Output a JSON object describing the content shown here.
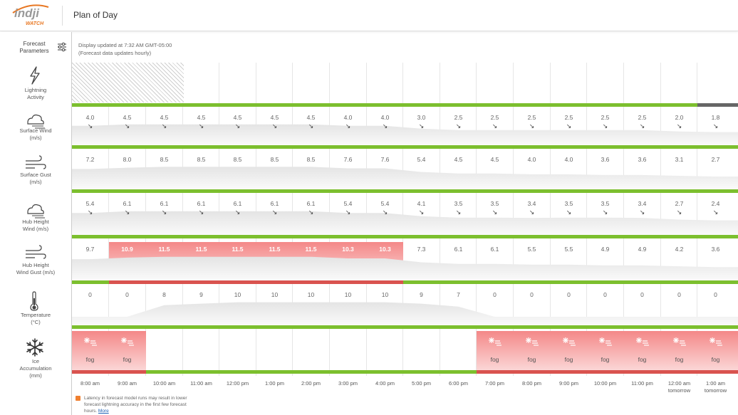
{
  "header": {
    "logo_text": "indji",
    "logo_sub": "WATCH",
    "title": "Plan of Day"
  },
  "forecast_params_label": "Forecast\nParameters",
  "update": {
    "line1": "Display updated at 7:32 AM GMT-05:00",
    "line2": "(Forecast data updates hourly)"
  },
  "colors": {
    "ok": "#7cbf2e",
    "warn": "#d9534f",
    "dark": "#666666",
    "highlight": "#f48888"
  },
  "params": [
    {
      "label": "Lightning\nActivity",
      "icon": "lightning-icon"
    },
    {
      "label": "Surface Wind\n(m/s)",
      "icon": "wind-icon"
    },
    {
      "label": "Surface Gust\n(m/s)",
      "icon": "gust-icon"
    },
    {
      "label": "Hub Height\nWind (m/s)",
      "icon": "wind-icon"
    },
    {
      "label": "Hub Height\nWind Gust (m/s)",
      "icon": "gust-icon"
    },
    {
      "label": "Temperature\n(°C)",
      "icon": "thermometer-icon"
    },
    {
      "label": "Ice\nAccumulation\n(mm)",
      "icon": "snowflake-icon"
    }
  ],
  "times": [
    "8:00 am",
    "9:00 am",
    "10:00 am",
    "11:00 am",
    "12:00 pm",
    "1:00 pm",
    "2:00 pm",
    "3:00 pm",
    "4:00 pm",
    "5:00 pm",
    "6:00 pm",
    "7:00 pm",
    "8:00 pm",
    "9:00 pm",
    "10:00 pm",
    "11:00 pm",
    "12:00 am\ntomorrow",
    "1:00 am\ntomorrow"
  ],
  "lightning": {
    "hatched_hours": 3,
    "status": [
      "g",
      "g",
      "g",
      "g",
      "g",
      "g",
      "g",
      "g",
      "g",
      "g",
      "g",
      "g",
      "g",
      "g",
      "g",
      "g",
      "g",
      "d"
    ]
  },
  "surface_wind": {
    "values": [
      "4.0",
      "4.5",
      "4.5",
      "4.5",
      "4.5",
      "4.5",
      "4.5",
      "4.0",
      "4.0",
      "3.0",
      "2.5",
      "2.5",
      "2.5",
      "2.5",
      "2.5",
      "2.5",
      "2.0",
      "1.8"
    ],
    "arrows": [
      "↘",
      "↘",
      "↘",
      "↘",
      "↘",
      "↘",
      "↘",
      "↘",
      "↘",
      "↘",
      "↘",
      "↘",
      "↘",
      "↘",
      "↘",
      "↘",
      "↘",
      "↘"
    ],
    "status": [
      "g",
      "g",
      "g",
      "g",
      "g",
      "g",
      "g",
      "g",
      "g",
      "g",
      "g",
      "g",
      "g",
      "g",
      "g",
      "g",
      "g",
      "g"
    ]
  },
  "surface_gust": {
    "values": [
      "7.2",
      "8.0",
      "8.5",
      "8.5",
      "8.5",
      "8.5",
      "8.5",
      "7.6",
      "7.6",
      "5.4",
      "4.5",
      "4.5",
      "4.0",
      "4.0",
      "3.6",
      "3.6",
      "3.1",
      "2.7"
    ],
    "status": [
      "g",
      "g",
      "g",
      "g",
      "g",
      "g",
      "g",
      "g",
      "g",
      "g",
      "g",
      "g",
      "g",
      "g",
      "g",
      "g",
      "g",
      "g"
    ]
  },
  "hub_wind": {
    "values": [
      "5.4",
      "6.1",
      "6.1",
      "6.1",
      "6.1",
      "6.1",
      "6.1",
      "5.4",
      "5.4",
      "4.1",
      "3.5",
      "3.5",
      "3.4",
      "3.5",
      "3.5",
      "3.4",
      "2.7",
      "2.4"
    ],
    "arrows": [
      "↘",
      "↘",
      "↘",
      "↘",
      "↘",
      "↘",
      "↘",
      "↘",
      "↘",
      "↘",
      "↘",
      "↘",
      "↘",
      "↘",
      "↘",
      "↘",
      "↘",
      "↘"
    ],
    "status": [
      "g",
      "g",
      "g",
      "g",
      "g",
      "g",
      "g",
      "g",
      "g",
      "g",
      "g",
      "g",
      "g",
      "g",
      "g",
      "g",
      "g",
      "g"
    ]
  },
  "hub_gust": {
    "values": [
      "9.7",
      "10.9",
      "11.5",
      "11.5",
      "11.5",
      "11.5",
      "11.5",
      "10.3",
      "10.3",
      "7.3",
      "6.1",
      "6.1",
      "5.5",
      "5.5",
      "4.9",
      "4.9",
      "4.2",
      "3.6"
    ],
    "highlight": [
      false,
      true,
      true,
      true,
      true,
      true,
      true,
      true,
      true,
      false,
      false,
      false,
      false,
      false,
      false,
      false,
      false,
      false
    ],
    "status": [
      "g",
      "r",
      "r",
      "r",
      "r",
      "r",
      "r",
      "r",
      "r",
      "g",
      "g",
      "g",
      "g",
      "g",
      "g",
      "g",
      "g",
      "g"
    ]
  },
  "temperature": {
    "values": [
      "0",
      "0",
      "8",
      "9",
      "10",
      "10",
      "10",
      "10",
      "10",
      "9",
      "7",
      "0",
      "0",
      "0",
      "0",
      "0",
      "0",
      "0"
    ],
    "status": [
      "g",
      "g",
      "g",
      "g",
      "g",
      "g",
      "g",
      "g",
      "g",
      "g",
      "g",
      "g",
      "g",
      "g",
      "g",
      "g",
      "g",
      "g"
    ]
  },
  "ice": {
    "labels": [
      "fog",
      "fog",
      "",
      "",
      "",
      "",
      "",
      "",
      "",
      "",
      "",
      "fog",
      "fog",
      "fog",
      "fog",
      "fog",
      "fog",
      "fog"
    ],
    "highlight": [
      true,
      true,
      false,
      false,
      false,
      false,
      false,
      false,
      false,
      false,
      false,
      true,
      true,
      true,
      true,
      true,
      true,
      true
    ],
    "status": [
      "r",
      "r",
      "g",
      "g",
      "g",
      "g",
      "g",
      "g",
      "g",
      "g",
      "g",
      "r",
      "r",
      "r",
      "r",
      "r",
      "r",
      "r"
    ]
  },
  "note": {
    "text": "Latency in forecast model runs may result in lower forecast lightning accuracy in the first few forecast hours.",
    "link": "More"
  }
}
